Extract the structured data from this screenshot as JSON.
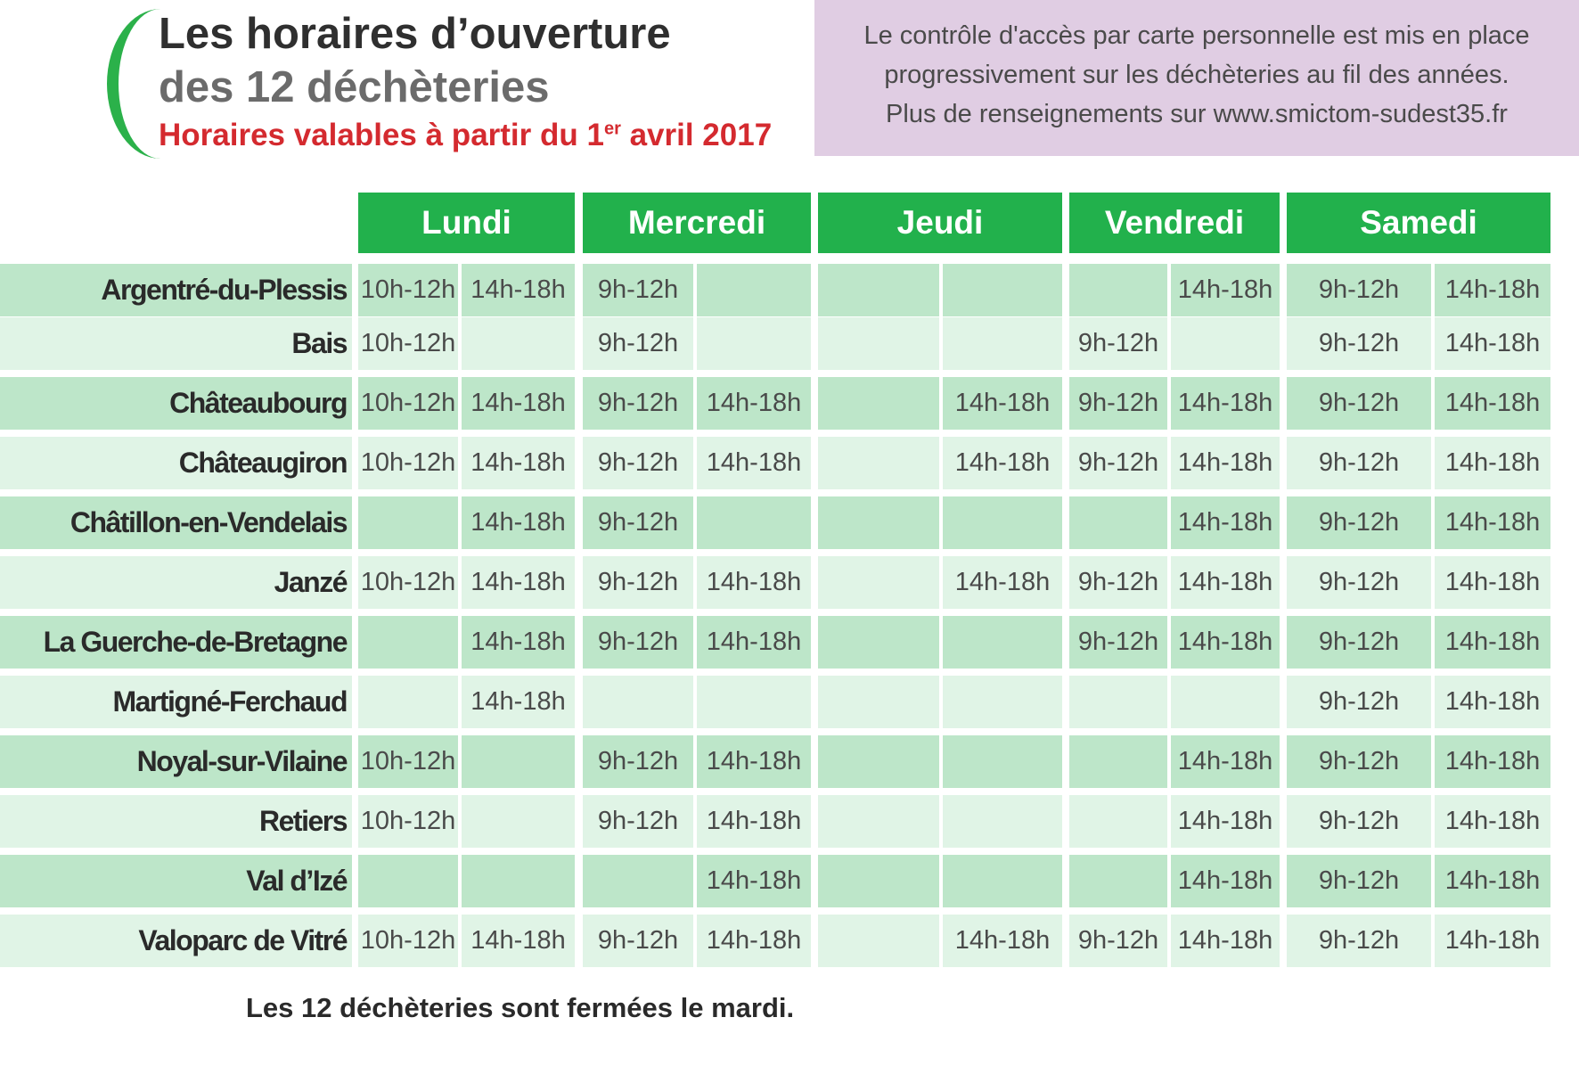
{
  "header": {
    "title_line1": "Les horaires d’ouverture",
    "title_line2": "des 12 déchèteries",
    "validity_prefix": "Horaires valables à partir du 1",
    "validity_sup": "er",
    "validity_suffix": " avril 2017"
  },
  "info": {
    "line1": "Le contrôle d'accès par carte personnelle est mis en place",
    "line2": "progressivement sur les déchèteries au fil des années.",
    "line3": "Plus de renseignements sur www.smictom-sudest35.fr"
  },
  "days": [
    "Lundi",
    "Mercredi",
    "Jeudi",
    "Vendredi",
    "Samedi"
  ],
  "rows": [
    {
      "name": "Argentré-du-Plessis",
      "slots": [
        "10h-12h",
        "14h-18h",
        "9h-12h",
        "",
        "",
        "",
        "",
        "14h-18h",
        "9h-12h",
        "14h-18h"
      ]
    },
    {
      "name": "Bais",
      "slots": [
        "10h-12h",
        "",
        "9h-12h",
        "",
        "",
        "",
        "9h-12h",
        "",
        "9h-12h",
        "14h-18h"
      ]
    },
    {
      "name": "Châteaubourg",
      "slots": [
        "10h-12h",
        "14h-18h",
        "9h-12h",
        "14h-18h",
        "",
        "14h-18h",
        "9h-12h",
        "14h-18h",
        "9h-12h",
        "14h-18h"
      ]
    },
    {
      "name": "Châteaugiron",
      "slots": [
        "10h-12h",
        "14h-18h",
        "9h-12h",
        "14h-18h",
        "",
        "14h-18h",
        "9h-12h",
        "14h-18h",
        "9h-12h",
        "14h-18h"
      ]
    },
    {
      "name": "Châtillon-en-Vendelais",
      "slots": [
        "",
        "14h-18h",
        "9h-12h",
        "",
        "",
        "",
        "",
        "14h-18h",
        "9h-12h",
        "14h-18h"
      ]
    },
    {
      "name": "Janzé",
      "slots": [
        "10h-12h",
        "14h-18h",
        "9h-12h",
        "14h-18h",
        "",
        "14h-18h",
        "9h-12h",
        "14h-18h",
        "9h-12h",
        "14h-18h"
      ]
    },
    {
      "name": "La Guerche-de-Bretagne",
      "slots": [
        "",
        "14h-18h",
        "9h-12h",
        "14h-18h",
        "",
        "",
        "9h-12h",
        "14h-18h",
        "9h-12h",
        "14h-18h"
      ]
    },
    {
      "name": "Martigné-Ferchaud",
      "slots": [
        "",
        "14h-18h",
        "",
        "",
        "",
        "",
        "",
        "",
        "9h-12h",
        "14h-18h"
      ]
    },
    {
      "name": "Noyal-sur-Vilaine",
      "slots": [
        "10h-12h",
        "",
        "9h-12h",
        "14h-18h",
        "",
        "",
        "",
        "14h-18h",
        "9h-12h",
        "14h-18h"
      ]
    },
    {
      "name": "Retiers",
      "slots": [
        "10h-12h",
        "",
        "9h-12h",
        "14h-18h",
        "",
        "",
        "",
        "14h-18h",
        "9h-12h",
        "14h-18h"
      ]
    },
    {
      "name": "Val d’Izé",
      "slots": [
        "",
        "",
        "",
        "14h-18h",
        "",
        "",
        "",
        "14h-18h",
        "9h-12h",
        "14h-18h"
      ]
    },
    {
      "name": "Valoparc de Vitré",
      "slots": [
        "10h-12h",
        "14h-18h",
        "9h-12h",
        "14h-18h",
        "",
        "14h-18h",
        "9h-12h",
        "14h-18h",
        "9h-12h",
        "14h-18h"
      ]
    }
  ],
  "footer": "Les 12 déchèteries sont fermées le mardi.",
  "colors": {
    "accent_green": "#22b14c",
    "title_red": "#d42a2f",
    "row_dark": "#bde6c9",
    "row_light": "#e0f4e6",
    "info_bg": "#e0cde3"
  }
}
